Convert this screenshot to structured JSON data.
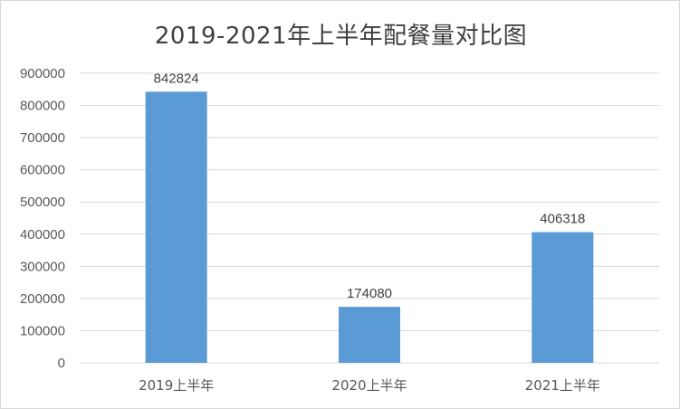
{
  "chart_data": {
    "type": "bar",
    "title": "2019-2021年上半年配餐量对比图",
    "categories": [
      "2019上半年",
      "2020上半年",
      "2021上半年"
    ],
    "values": [
      842824,
      174080,
      406318
    ],
    "data_labels": [
      "842824",
      "174080",
      "406318"
    ],
    "ylim": [
      0,
      900000
    ],
    "yticks": [
      "0",
      "100000",
      "200000",
      "300000",
      "400000",
      "500000",
      "600000",
      "700000",
      "800000",
      "900000"
    ],
    "grid": true,
    "bar_color": "#5b9bd5",
    "xlabel": "",
    "ylabel": ""
  }
}
